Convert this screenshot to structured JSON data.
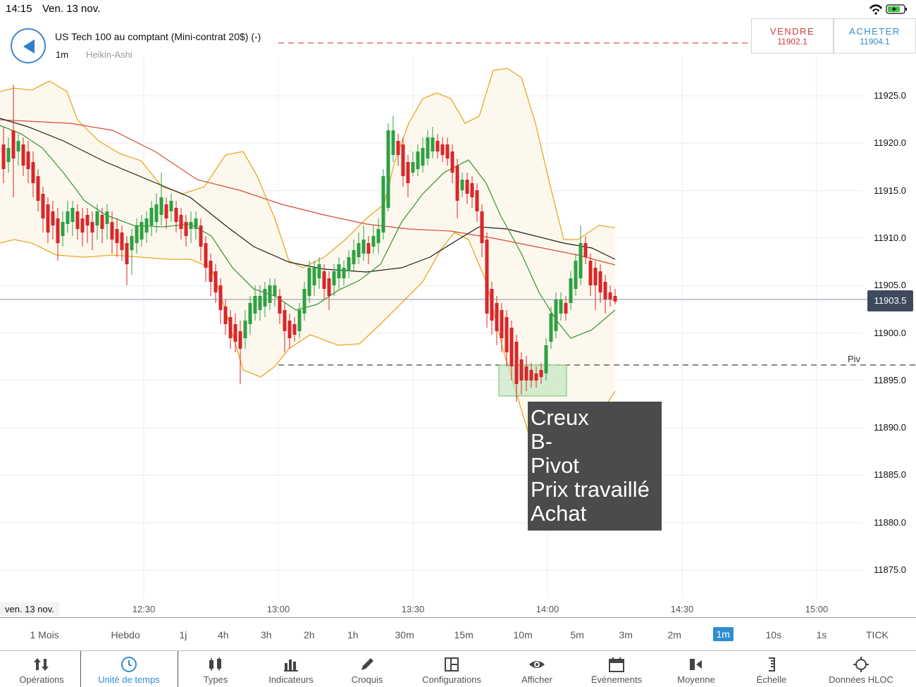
{
  "status_bar": {
    "time": "14:15",
    "date": "Ven. 13 nov."
  },
  "header": {
    "instrument": "US Tech 100 au comptant (Mini-contrat 20$) (-)",
    "timeframe": "1m",
    "chart_type": "Heikin-Ashi"
  },
  "trade": {
    "sell_label": "VENDRE",
    "sell_price": "11902.1",
    "buy_label": "ACHETER",
    "buy_price": "11904.1"
  },
  "chart": {
    "y_ticks": [
      "11925.0",
      "11920.0",
      "11915.0",
      "11910.0",
      "11905.0",
      "11900.0",
      "11895.0",
      "11890.0",
      "11885.0",
      "11880.0",
      "11875.0"
    ],
    "x_ticks": [
      "12:30",
      "13:00",
      "13:30",
      "14:00",
      "14:30",
      "15:00"
    ],
    "date_label": "ven. 13 nov.",
    "current_price": "11903.5",
    "pivot_label": "Piv",
    "annotation_lines": [
      "Creux",
      "B-",
      "Pivot",
      "Prix travaillé",
      "Achat"
    ],
    "colors": {
      "up": "#2ea043",
      "down": "#d9262a",
      "bollinger": "#e8a825",
      "ma_fast": "#3e9a3e",
      "ma_red": "#d84a3a",
      "ma_black": "#1e1e1e",
      "sell_line": "#e05555",
      "zone": "#b9e2b9"
    }
  },
  "timeframes": {
    "items": [
      "1 Mois",
      "Hebdo",
      "1j",
      "4h",
      "3h",
      "2h",
      "1h",
      "30m",
      "15m",
      "10m",
      "5m",
      "3m",
      "2m",
      "1m",
      "10s",
      "1s",
      "TICK"
    ],
    "active": "1m"
  },
  "toolbar": {
    "items": [
      {
        "label": "Opérations",
        "icon": "updown-arrows-icon"
      },
      {
        "label": "Unité de temps",
        "icon": "clock-icon"
      },
      {
        "label": "Types",
        "icon": "candles-icon"
      },
      {
        "label": "Indicateurs",
        "icon": "bars-icon"
      },
      {
        "label": "Croquis",
        "icon": "pencil-icon"
      },
      {
        "label": "Configurations",
        "icon": "layout-icon"
      },
      {
        "label": "Afficher",
        "icon": "eye-icon"
      },
      {
        "label": "Événements",
        "icon": "calendar-icon"
      },
      {
        "label": "Moyenne",
        "icon": "average-icon"
      },
      {
        "label": "Échelle",
        "icon": "scale-icon"
      },
      {
        "label": "Données HLOC",
        "icon": "crosshair-icon"
      }
    ],
    "active": "Unité de temps"
  }
}
